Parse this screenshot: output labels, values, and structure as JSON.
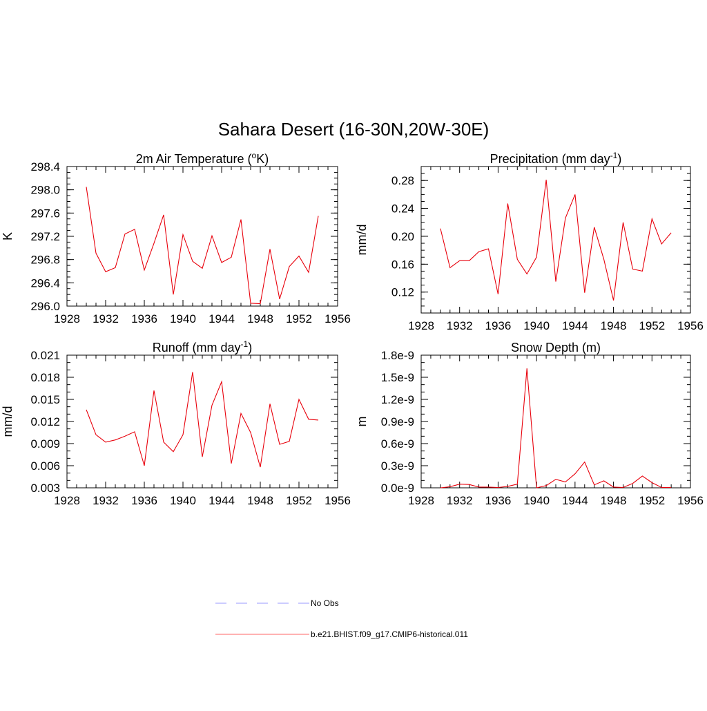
{
  "title": "Sahara Desert (16-30N,20W-30E)",
  "legend": {
    "items": [
      {
        "label": "No Obs",
        "color": "#9999ff",
        "dash": true
      },
      {
        "label": "b.e21.BHIST.f09_g17.CMIP6-historical.011",
        "color": "#ff6666",
        "dash": false
      }
    ]
  },
  "chart_data": [
    {
      "type": "line",
      "title": "2m Air Temperature (",
      "title_sup": "o",
      "title_after": "K)",
      "ylabel": "K",
      "xlim": [
        1928,
        1956
      ],
      "xticks": [
        1928,
        1932,
        1936,
        1940,
        1944,
        1948,
        1952,
        1956
      ],
      "ylim": [
        296.0,
        298.4
      ],
      "yticks": [
        "296.0",
        "296.4",
        "296.8",
        "297.2",
        "297.6",
        "298.0",
        "298.4"
      ],
      "ytick_values": [
        296.0,
        296.4,
        296.8,
        297.2,
        297.6,
        298.0,
        298.4
      ],
      "ymajor": 0.4,
      "yminor": 0.1,
      "color": "#e8000b",
      "series": [
        {
          "name": "b.e21.BHIST.f09_g17.CMIP6-historical.011",
          "x": [
            1930,
            1931,
            1932,
            1933,
            1934,
            1935,
            1936,
            1937,
            1938,
            1939,
            1940,
            1941,
            1942,
            1943,
            1944,
            1945,
            1946,
            1947,
            1948,
            1949,
            1950,
            1951,
            1952,
            1953,
            1954
          ],
          "y": [
            298.05,
            296.91,
            296.59,
            296.66,
            297.24,
            297.32,
            296.62,
            297.08,
            297.57,
            296.2,
            297.23,
            296.77,
            296.65,
            297.21,
            296.75,
            296.84,
            297.49,
            296.05,
            296.04,
            296.98,
            296.12,
            296.68,
            296.86,
            296.58,
            297.55
          ]
        }
      ]
    },
    {
      "type": "line",
      "title": "Precipitation (mm day",
      "title_sup": "-1",
      "title_after": ")",
      "ylabel": "mm/d",
      "xlim": [
        1928,
        1956
      ],
      "xticks": [
        1928,
        1932,
        1936,
        1940,
        1944,
        1948,
        1952,
        1956
      ],
      "ylim": [
        0.09,
        0.3
      ],
      "yticks": [
        "0.12",
        "0.16",
        "0.20",
        "0.24",
        "0.28"
      ],
      "ytick_values": [
        0.12,
        0.16,
        0.2,
        0.24,
        0.28
      ],
      "ymajor": 0.04,
      "yminor": 0.01,
      "color": "#e8000b",
      "series": [
        {
          "name": "b.e21.BHIST.f09_g17.CMIP6-historical.011",
          "x": [
            1930,
            1931,
            1932,
            1933,
            1934,
            1935,
            1936,
            1937,
            1938,
            1939,
            1940,
            1941,
            1942,
            1943,
            1944,
            1945,
            1946,
            1947,
            1948,
            1949,
            1950,
            1951,
            1952,
            1953,
            1954
          ],
          "y": [
            0.211,
            0.155,
            0.165,
            0.165,
            0.178,
            0.182,
            0.117,
            0.247,
            0.167,
            0.146,
            0.17,
            0.281,
            0.135,
            0.226,
            0.26,
            0.119,
            0.213,
            0.167,
            0.108,
            0.22,
            0.153,
            0.15,
            0.225,
            0.189,
            0.205
          ]
        }
      ]
    },
    {
      "type": "line",
      "title": "Runoff (mm day",
      "title_sup": "-1",
      "title_after": ")",
      "ylabel": "mm/d",
      "xlim": [
        1928,
        1956
      ],
      "xticks": [
        1928,
        1932,
        1936,
        1940,
        1944,
        1948,
        1952,
        1956
      ],
      "ylim": [
        0.003,
        0.021
      ],
      "yticks": [
        "0.003",
        "0.006",
        "0.009",
        "0.012",
        "0.015",
        "0.018",
        "0.021"
      ],
      "ytick_values": [
        0.003,
        0.006,
        0.009,
        0.012,
        0.015,
        0.018,
        0.021
      ],
      "ymajor": 0.003,
      "yminor": 0.001,
      "color": "#e8000b",
      "series": [
        {
          "name": "b.e21.BHIST.f09_g17.CMIP6-historical.011",
          "x": [
            1930,
            1931,
            1932,
            1933,
            1934,
            1935,
            1936,
            1937,
            1938,
            1939,
            1940,
            1941,
            1942,
            1943,
            1944,
            1945,
            1946,
            1947,
            1948,
            1949,
            1950,
            1951,
            1952,
            1953,
            1954
          ],
          "y": [
            0.0136,
            0.0102,
            0.0092,
            0.0095,
            0.01,
            0.0106,
            0.006,
            0.0162,
            0.0092,
            0.0079,
            0.0102,
            0.0187,
            0.0072,
            0.0142,
            0.0174,
            0.0063,
            0.0131,
            0.0105,
            0.0058,
            0.0144,
            0.0089,
            0.0093,
            0.015,
            0.0123,
            0.0122
          ]
        }
      ]
    },
    {
      "type": "line",
      "title": "Snow Depth (m)",
      "title_sup": "",
      "title_after": "",
      "ylabel": "m",
      "xlim": [
        1928,
        1956
      ],
      "xticks": [
        1928,
        1932,
        1936,
        1940,
        1944,
        1948,
        1952,
        1956
      ],
      "ylim": [
        0.0,
        1.8e-09
      ],
      "yticks": [
        "0.0e-9",
        "0.3e-9",
        "0.6e-9",
        "0.9e-9",
        "1.2e-9",
        "1.5e-9",
        "1.8e-9"
      ],
      "ytick_values": [
        0.0,
        3e-10,
        6e-10,
        9e-10,
        1.2e-09,
        1.5e-09,
        1.8e-09
      ],
      "ymajor": 3e-10,
      "yminor": 1e-10,
      "color": "#e8000b",
      "series": [
        {
          "name": "b.e21.BHIST.f09_g17.CMIP6-historical.011",
          "x": [
            1930,
            1931,
            1932,
            1933,
            1934,
            1935,
            1936,
            1937,
            1938,
            1939,
            1940,
            1941,
            1942,
            1943,
            1944,
            1945,
            1946,
            1947,
            1948,
            1949,
            1950,
            1951,
            1952,
            1953,
            1954
          ],
          "y": [
            0.0,
            1.5e-11,
            5e-11,
            4.5e-11,
            1e-11,
            1e-11,
            5e-12,
            2e-11,
            5e-11,
            1.62e-09,
            0.0,
            3e-11,
            1.15e-10,
            8e-11,
            1.9e-10,
            3.5e-10,
            4e-11,
            9.5e-11,
            1e-11,
            5e-12,
            6e-11,
            1.6e-10,
            7e-11,
            5e-12,
            5e-12
          ]
        }
      ]
    }
  ]
}
